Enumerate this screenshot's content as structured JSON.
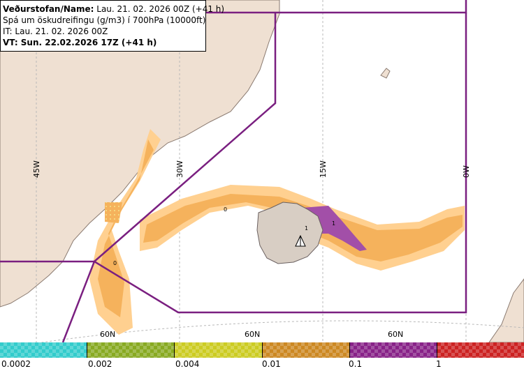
{
  "info": {
    "line1_bold": "Veðurstofan/Name:",
    "line1_rest": " Lau. 21. 02. 2026 00Z (+41 h)",
    "line2": "Spá um öskudreifingu (g/m3) í 700hPa (10000ft)",
    "line3": "IT: Lau. 21. 02. 2026 00Z",
    "line4": "VT: Sun. 22.02.2026 17Z (+41 h)"
  },
  "grid_labels": {
    "lon_45w": "45W",
    "lon_30w": "30W",
    "lon_15w": "15W",
    "lon_0w": "0W",
    "lat_60n_a": "60N",
    "lat_60n_b": "60N",
    "lat_60n_c": "60N"
  },
  "contour_labels": {
    "zero_a": "0",
    "zero_b": "0",
    "one_a": "1",
    "one_b": "1"
  },
  "legend": {
    "labels": [
      "0.0002",
      "0.002",
      "0.004",
      "0.01",
      "0.1",
      "1"
    ],
    "colors": [
      "#33cccc",
      "#88aa22",
      "#cccc22",
      "#cc8822",
      "#882288",
      "#cc2222"
    ]
  },
  "colors": {
    "land": "#efe0d2",
    "sea": "#ffffff",
    "iceland": "#d8cec4",
    "fir_boundary": "#7a1f80",
    "ash_low": "#ffd090",
    "ash_mid": "#f5b25c",
    "ash_high": "#a24fa8"
  }
}
